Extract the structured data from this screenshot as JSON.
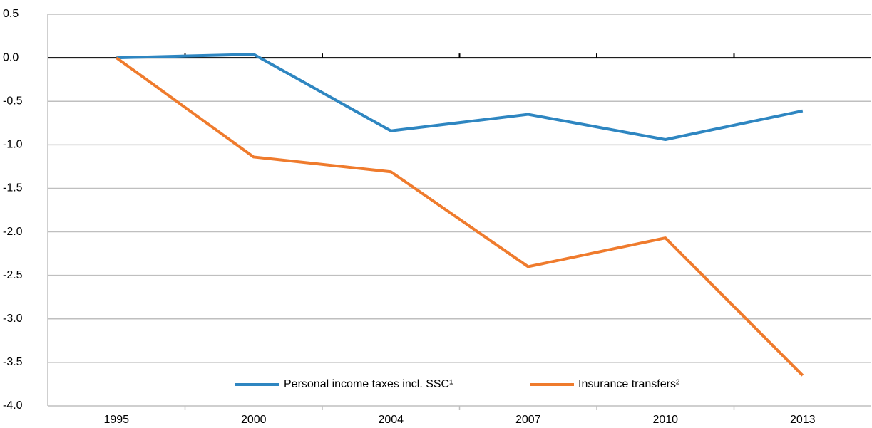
{
  "chart_data": {
    "type": "line",
    "categories": [
      "1995",
      "2000",
      "2004",
      "2007",
      "2010",
      "2013"
    ],
    "series": [
      {
        "name": "Personal income taxes incl. SSC¹",
        "color": "#2e86c1",
        "values": [
          0,
          0.04,
          -0.84,
          -0.65,
          -0.94,
          -0.61
        ]
      },
      {
        "name": "Insurance transfers²",
        "color": "#ef7b2d",
        "values": [
          0,
          -1.14,
          -1.31,
          -2.4,
          -2.07,
          -3.65
        ]
      }
    ],
    "ylim": [
      -4,
      0.5
    ],
    "yticks": [
      0.5,
      {
        "value": 0,
        "label": "0.0"
      },
      -0.5,
      {
        "value": -1,
        "label": "-1.0"
      },
      -1.5,
      {
        "value": -2,
        "label": "-2.0"
      },
      -2.5,
      {
        "value": -3,
        "label": "-3.0"
      },
      -3.5,
      {
        "value": -4,
        "label": "-4.0"
      }
    ],
    "grid": true,
    "legend": "bottom"
  }
}
